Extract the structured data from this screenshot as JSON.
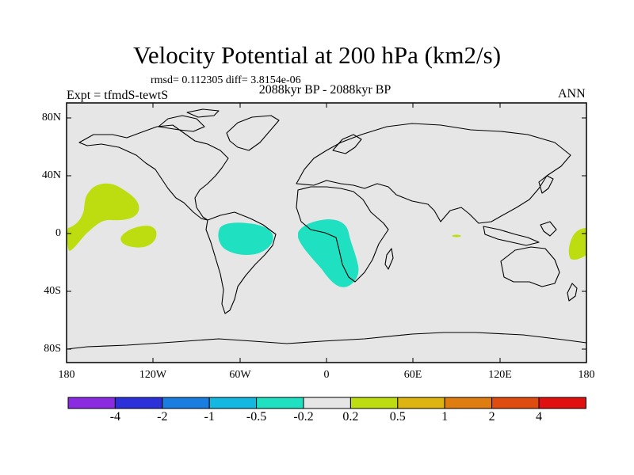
{
  "title": "Velocity Potential at 200 hPa (km2/s)",
  "stats_line": "rmsd= 0.112305 diff= 3.8154e-06",
  "subtitle": "2088kyr BP - 2088kyr BP",
  "left_label": "Expt = tfmdS-tewtS",
  "right_label": "ANN",
  "lat_ticks": [
    "80N",
    "40N",
    "0",
    "40S",
    "80S"
  ],
  "lon_ticks": [
    "180",
    "120W",
    "60W",
    "0",
    "60E",
    "120E",
    "180"
  ],
  "colorbar": {
    "colors": [
      "#8a2be2",
      "#2b30d8",
      "#1a7ee0",
      "#12b8e0",
      "#1fe0c0",
      "#e6e6e6",
      "#bedd10",
      "#ddb410",
      "#e07d10",
      "#e04b10",
      "#e01010"
    ],
    "labels": [
      "-4",
      "-2",
      "-1",
      "-0.5",
      "-0.2",
      "0.2",
      "0.5",
      "1",
      "2",
      "4"
    ]
  },
  "colors": {
    "ocean_fill": "#e6e6e6",
    "negative_fill": "#1fe0c0",
    "positive_fill": "#bedd10",
    "coast": "#000000"
  }
}
